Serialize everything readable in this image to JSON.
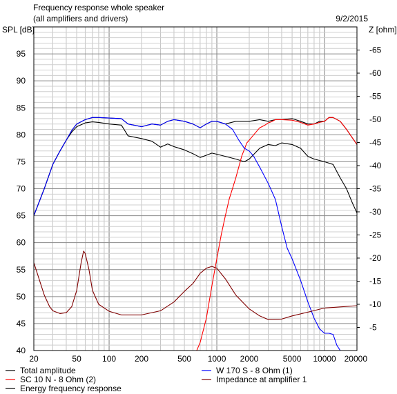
{
  "header": {
    "title": "Frequency response whole speaker",
    "subtitle": "(all amplifiers and drivers)",
    "date": "9/2/2015"
  },
  "chart_data": {
    "type": "line",
    "title": "Frequency response whole speaker",
    "subtitle": "(all amplifiers and drivers)",
    "xlabel": "",
    "ylabel": "SPL [dB]",
    "y2label": "Z [ohm]",
    "xscale": "log",
    "xlim": [
      20,
      20000
    ],
    "ylim": [
      40,
      100
    ],
    "y2lim": [
      0,
      70
    ],
    "grid": true,
    "legend_placement": "bottom",
    "x_ticks": [
      20,
      50,
      100,
      200,
      500,
      1000,
      2000,
      5000,
      10000,
      20000
    ],
    "x_tick_labels": [
      "20",
      "50",
      "100",
      "200",
      "500",
      "1000",
      "2000",
      "5000",
      "10000",
      "20000"
    ],
    "y_ticks": [
      40,
      45,
      50,
      55,
      60,
      65,
      70,
      75,
      80,
      85,
      90,
      95
    ],
    "y_tick_labels": [
      "40",
      "45",
      "50",
      "55",
      "60",
      "65",
      "70",
      "75",
      "80",
      "85",
      "90",
      "95"
    ],
    "y2_ticks": [
      5,
      10,
      15,
      20,
      25,
      30,
      35,
      40,
      45,
      50,
      55,
      60,
      65
    ],
    "y2_tick_labels": [
      "-5",
      "-10",
      "-15",
      "-20",
      "-25",
      "-30",
      "-35",
      "-40",
      "-45",
      "-50",
      "-55",
      "-60",
      "-65"
    ],
    "series": [
      {
        "name": "Total amplitude",
        "color": "#000000",
        "axis": "left",
        "points": [
          [
            20,
            65
          ],
          [
            25,
            70
          ],
          [
            30,
            74.5
          ],
          [
            35,
            77
          ],
          [
            40,
            79
          ],
          [
            45,
            80.8
          ],
          [
            50,
            82
          ],
          [
            60,
            82.8
          ],
          [
            70,
            83.2
          ],
          [
            80,
            83.2
          ],
          [
            100,
            83.1
          ],
          [
            130,
            83
          ],
          [
            150,
            82
          ],
          [
            200,
            81.5
          ],
          [
            250,
            82
          ],
          [
            300,
            81.8
          ],
          [
            350,
            82.5
          ],
          [
            400,
            82.8
          ],
          [
            500,
            82.5
          ],
          [
            600,
            82
          ],
          [
            700,
            81.3
          ],
          [
            800,
            82
          ],
          [
            900,
            82.5
          ],
          [
            1000,
            82.5
          ],
          [
            1200,
            82
          ],
          [
            1500,
            82.5
          ],
          [
            2000,
            82.5
          ],
          [
            2500,
            82.8
          ],
          [
            3000,
            82.5
          ],
          [
            3500,
            82.8
          ],
          [
            4000,
            82.8
          ],
          [
            5000,
            83
          ],
          [
            6000,
            82.5
          ],
          [
            7000,
            82
          ],
          [
            8000,
            82
          ],
          [
            9000,
            82.5
          ],
          [
            10000,
            82.5
          ],
          [
            11000,
            83.2
          ],
          [
            12000,
            83.2
          ],
          [
            14000,
            82.5
          ],
          [
            16000,
            81
          ],
          [
            18000,
            79.5
          ],
          [
            20000,
            78.2
          ]
        ]
      },
      {
        "name": "SC 10 N - 8 Ohm (2)",
        "color": "#ff0000",
        "axis": "left",
        "points": [
          [
            650,
            40
          ],
          [
            700,
            41.5
          ],
          [
            800,
            46
          ],
          [
            900,
            52
          ],
          [
            1000,
            57
          ],
          [
            1100,
            61.5
          ],
          [
            1200,
            65
          ],
          [
            1300,
            68
          ],
          [
            1500,
            72
          ],
          [
            1700,
            76
          ],
          [
            1900,
            78.5
          ],
          [
            2000,
            79
          ],
          [
            2200,
            80
          ],
          [
            2500,
            81.3
          ],
          [
            2800,
            81.8
          ],
          [
            3000,
            82.2
          ],
          [
            3200,
            82.4
          ],
          [
            3500,
            82.8
          ],
          [
            4000,
            82.8
          ],
          [
            5000,
            82.7
          ],
          [
            6000,
            82.3
          ],
          [
            7000,
            81.8
          ],
          [
            8000,
            82
          ],
          [
            9000,
            82.3
          ],
          [
            10000,
            82.5
          ],
          [
            11000,
            83.2
          ],
          [
            12000,
            83.2
          ],
          [
            14000,
            82.5
          ],
          [
            16000,
            81
          ],
          [
            18000,
            79.5
          ],
          [
            20000,
            78.2
          ]
        ]
      },
      {
        "name": "W 170 S - 8 Ohm (1)",
        "color": "#0000ff",
        "axis": "left",
        "points": [
          [
            20,
            65
          ],
          [
            25,
            70
          ],
          [
            30,
            74.5
          ],
          [
            35,
            77
          ],
          [
            40,
            79
          ],
          [
            45,
            80.8
          ],
          [
            50,
            82
          ],
          [
            60,
            82.8
          ],
          [
            70,
            83.2
          ],
          [
            80,
            83.2
          ],
          [
            100,
            83.1
          ],
          [
            130,
            83
          ],
          [
            150,
            82
          ],
          [
            200,
            81.5
          ],
          [
            250,
            82
          ],
          [
            300,
            81.8
          ],
          [
            350,
            82.5
          ],
          [
            400,
            82.8
          ],
          [
            500,
            82.5
          ],
          [
            600,
            82
          ],
          [
            700,
            81.3
          ],
          [
            800,
            82
          ],
          [
            900,
            82.5
          ],
          [
            1000,
            82.5
          ],
          [
            1200,
            82
          ],
          [
            1400,
            81
          ],
          [
            1600,
            79
          ],
          [
            1800,
            77.5
          ],
          [
            2000,
            77
          ],
          [
            2200,
            76
          ],
          [
            2500,
            74
          ],
          [
            3000,
            71
          ],
          [
            3500,
            68
          ],
          [
            4000,
            63
          ],
          [
            4500,
            59
          ],
          [
            5000,
            57
          ],
          [
            6000,
            53
          ],
          [
            7000,
            49
          ],
          [
            8000,
            46
          ],
          [
            9000,
            44
          ],
          [
            10000,
            43.2
          ],
          [
            11000,
            43.2
          ],
          [
            12000,
            43
          ],
          [
            13000,
            41
          ],
          [
            14000,
            40
          ],
          [
            20000,
            40
          ]
        ]
      },
      {
        "name": "Impedance at amplifier 1",
        "color": "#800000",
        "axis": "right",
        "points": [
          [
            20,
            19
          ],
          [
            22,
            16
          ],
          [
            25,
            12
          ],
          [
            28,
            9.5
          ],
          [
            30,
            8.6
          ],
          [
            35,
            8
          ],
          [
            40,
            8.2
          ],
          [
            45,
            9.5
          ],
          [
            50,
            13
          ],
          [
            55,
            19
          ],
          [
            58,
            21.5
          ],
          [
            60,
            21
          ],
          [
            65,
            17.5
          ],
          [
            70,
            13
          ],
          [
            80,
            10
          ],
          [
            100,
            8.5
          ],
          [
            130,
            7.7
          ],
          [
            200,
            7.7
          ],
          [
            300,
            8.6
          ],
          [
            400,
            10.5
          ],
          [
            500,
            12.8
          ],
          [
            600,
            14.5
          ],
          [
            700,
            16.7
          ],
          [
            800,
            17.8
          ],
          [
            900,
            18.2
          ],
          [
            1000,
            17.8
          ],
          [
            1200,
            15.5
          ],
          [
            1500,
            12
          ],
          [
            2000,
            9
          ],
          [
            2500,
            7.5
          ],
          [
            3000,
            6.7
          ],
          [
            4000,
            6.8
          ],
          [
            5000,
            7.5
          ],
          [
            7000,
            8.3
          ],
          [
            10000,
            9.2
          ],
          [
            15000,
            9.5
          ],
          [
            20000,
            9.7
          ]
        ]
      },
      {
        "name": "Energy frequency response",
        "color": "#000000",
        "axis": "left",
        "points": [
          [
            20,
            65
          ],
          [
            25,
            70
          ],
          [
            30,
            74.5
          ],
          [
            35,
            77
          ],
          [
            40,
            79
          ],
          [
            45,
            80.5
          ],
          [
            50,
            81.5
          ],
          [
            60,
            82.2
          ],
          [
            70,
            82.4
          ],
          [
            80,
            82.3
          ],
          [
            100,
            82
          ],
          [
            130,
            81.8
          ],
          [
            150,
            79.8
          ],
          [
            200,
            79.3
          ],
          [
            250,
            78.8
          ],
          [
            300,
            77.7
          ],
          [
            350,
            78.3
          ],
          [
            400,
            77.8
          ],
          [
            500,
            77.2
          ],
          [
            600,
            76.5
          ],
          [
            700,
            75.8
          ],
          [
            800,
            76.2
          ],
          [
            900,
            76.6
          ],
          [
            1000,
            76.4
          ],
          [
            1200,
            76
          ],
          [
            1500,
            75.5
          ],
          [
            1800,
            75
          ],
          [
            2000,
            75.5
          ],
          [
            2500,
            77.5
          ],
          [
            3000,
            78.2
          ],
          [
            3500,
            78
          ],
          [
            4000,
            78.5
          ],
          [
            5000,
            78.2
          ],
          [
            6000,
            77.5
          ],
          [
            7000,
            76
          ],
          [
            8000,
            75.5
          ],
          [
            10000,
            75
          ],
          [
            12000,
            74.5
          ],
          [
            14000,
            72
          ],
          [
            16000,
            70
          ],
          [
            18000,
            67.5
          ],
          [
            20000,
            65.5
          ]
        ]
      }
    ]
  }
}
